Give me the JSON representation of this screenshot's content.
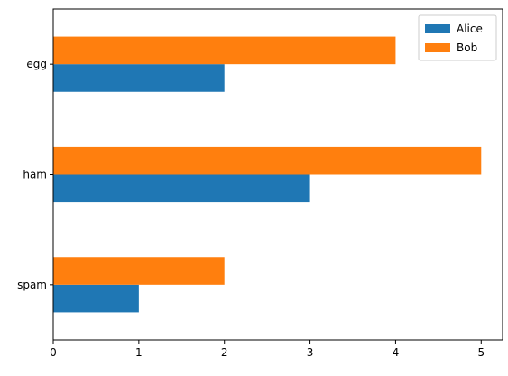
{
  "chart_data": {
    "type": "bar",
    "orientation": "horizontal",
    "title": "",
    "xlabel": "",
    "ylabel": "",
    "categories": [
      "spam",
      "ham",
      "egg"
    ],
    "series": [
      {
        "name": "Alice",
        "color": "#1f77b4",
        "values": [
          1,
          3,
          2
        ]
      },
      {
        "name": "Bob",
        "color": "#ff7f0e",
        "values": [
          2,
          5,
          4
        ]
      }
    ],
    "xlim": [
      0,
      5.25
    ],
    "xticks": [
      0,
      1,
      2,
      3,
      4,
      5
    ],
    "grid": false,
    "legend": {
      "position": "top-right",
      "entries": [
        "Alice",
        "Bob"
      ]
    }
  }
}
